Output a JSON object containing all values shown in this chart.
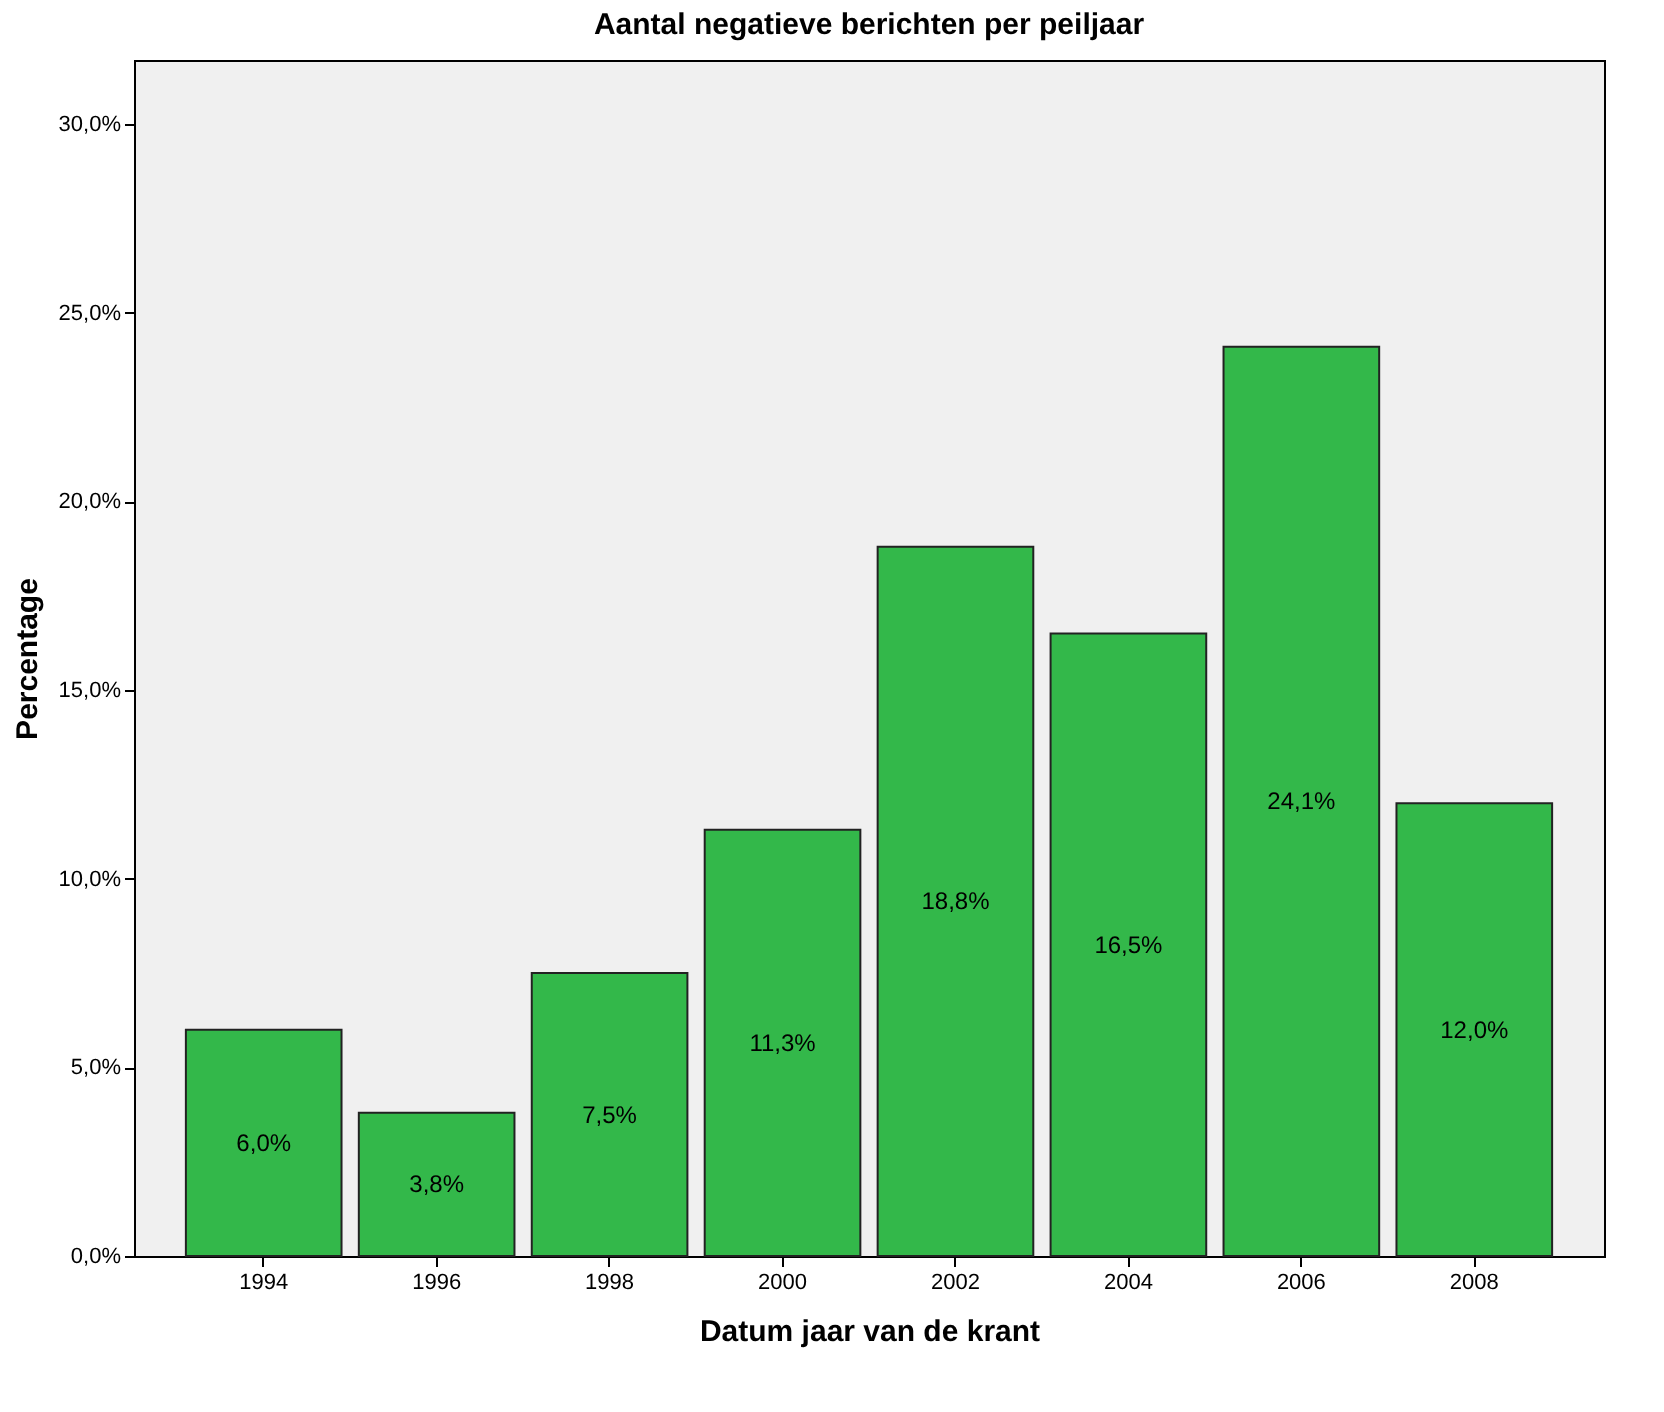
{
  "chart_data": {
    "type": "bar",
    "title": "Aantal negatieve  berichten per peiljaar",
    "xlabel": "Datum jaar van de krant",
    "ylabel": "Percentage",
    "categories": [
      "1994",
      "1996",
      "1998",
      "2000",
      "2002",
      "2004",
      "2006",
      "2008"
    ],
    "values": [
      6.0,
      3.8,
      7.5,
      11.3,
      18.8,
      16.5,
      24.1,
      12.0
    ],
    "value_labels": [
      "6,0%",
      "3,8%",
      "7,5%",
      "11,3%",
      "18,8%",
      "16,5%",
      "24,1%",
      "12,0%"
    ],
    "color": "#33b84a",
    "ylim": [
      0,
      31.7
    ],
    "yticks": [
      {
        "value": 0,
        "label": "0,0%"
      },
      {
        "value": 5,
        "label": "5,0%"
      },
      {
        "value": 10,
        "label": "10,0%"
      },
      {
        "value": 15,
        "label": "15,0%"
      },
      {
        "value": 20,
        "label": "20,0%"
      },
      {
        "value": 25,
        "label": "25,0%"
      },
      {
        "value": 30,
        "label": "30,0%"
      }
    ],
    "grid": false
  }
}
